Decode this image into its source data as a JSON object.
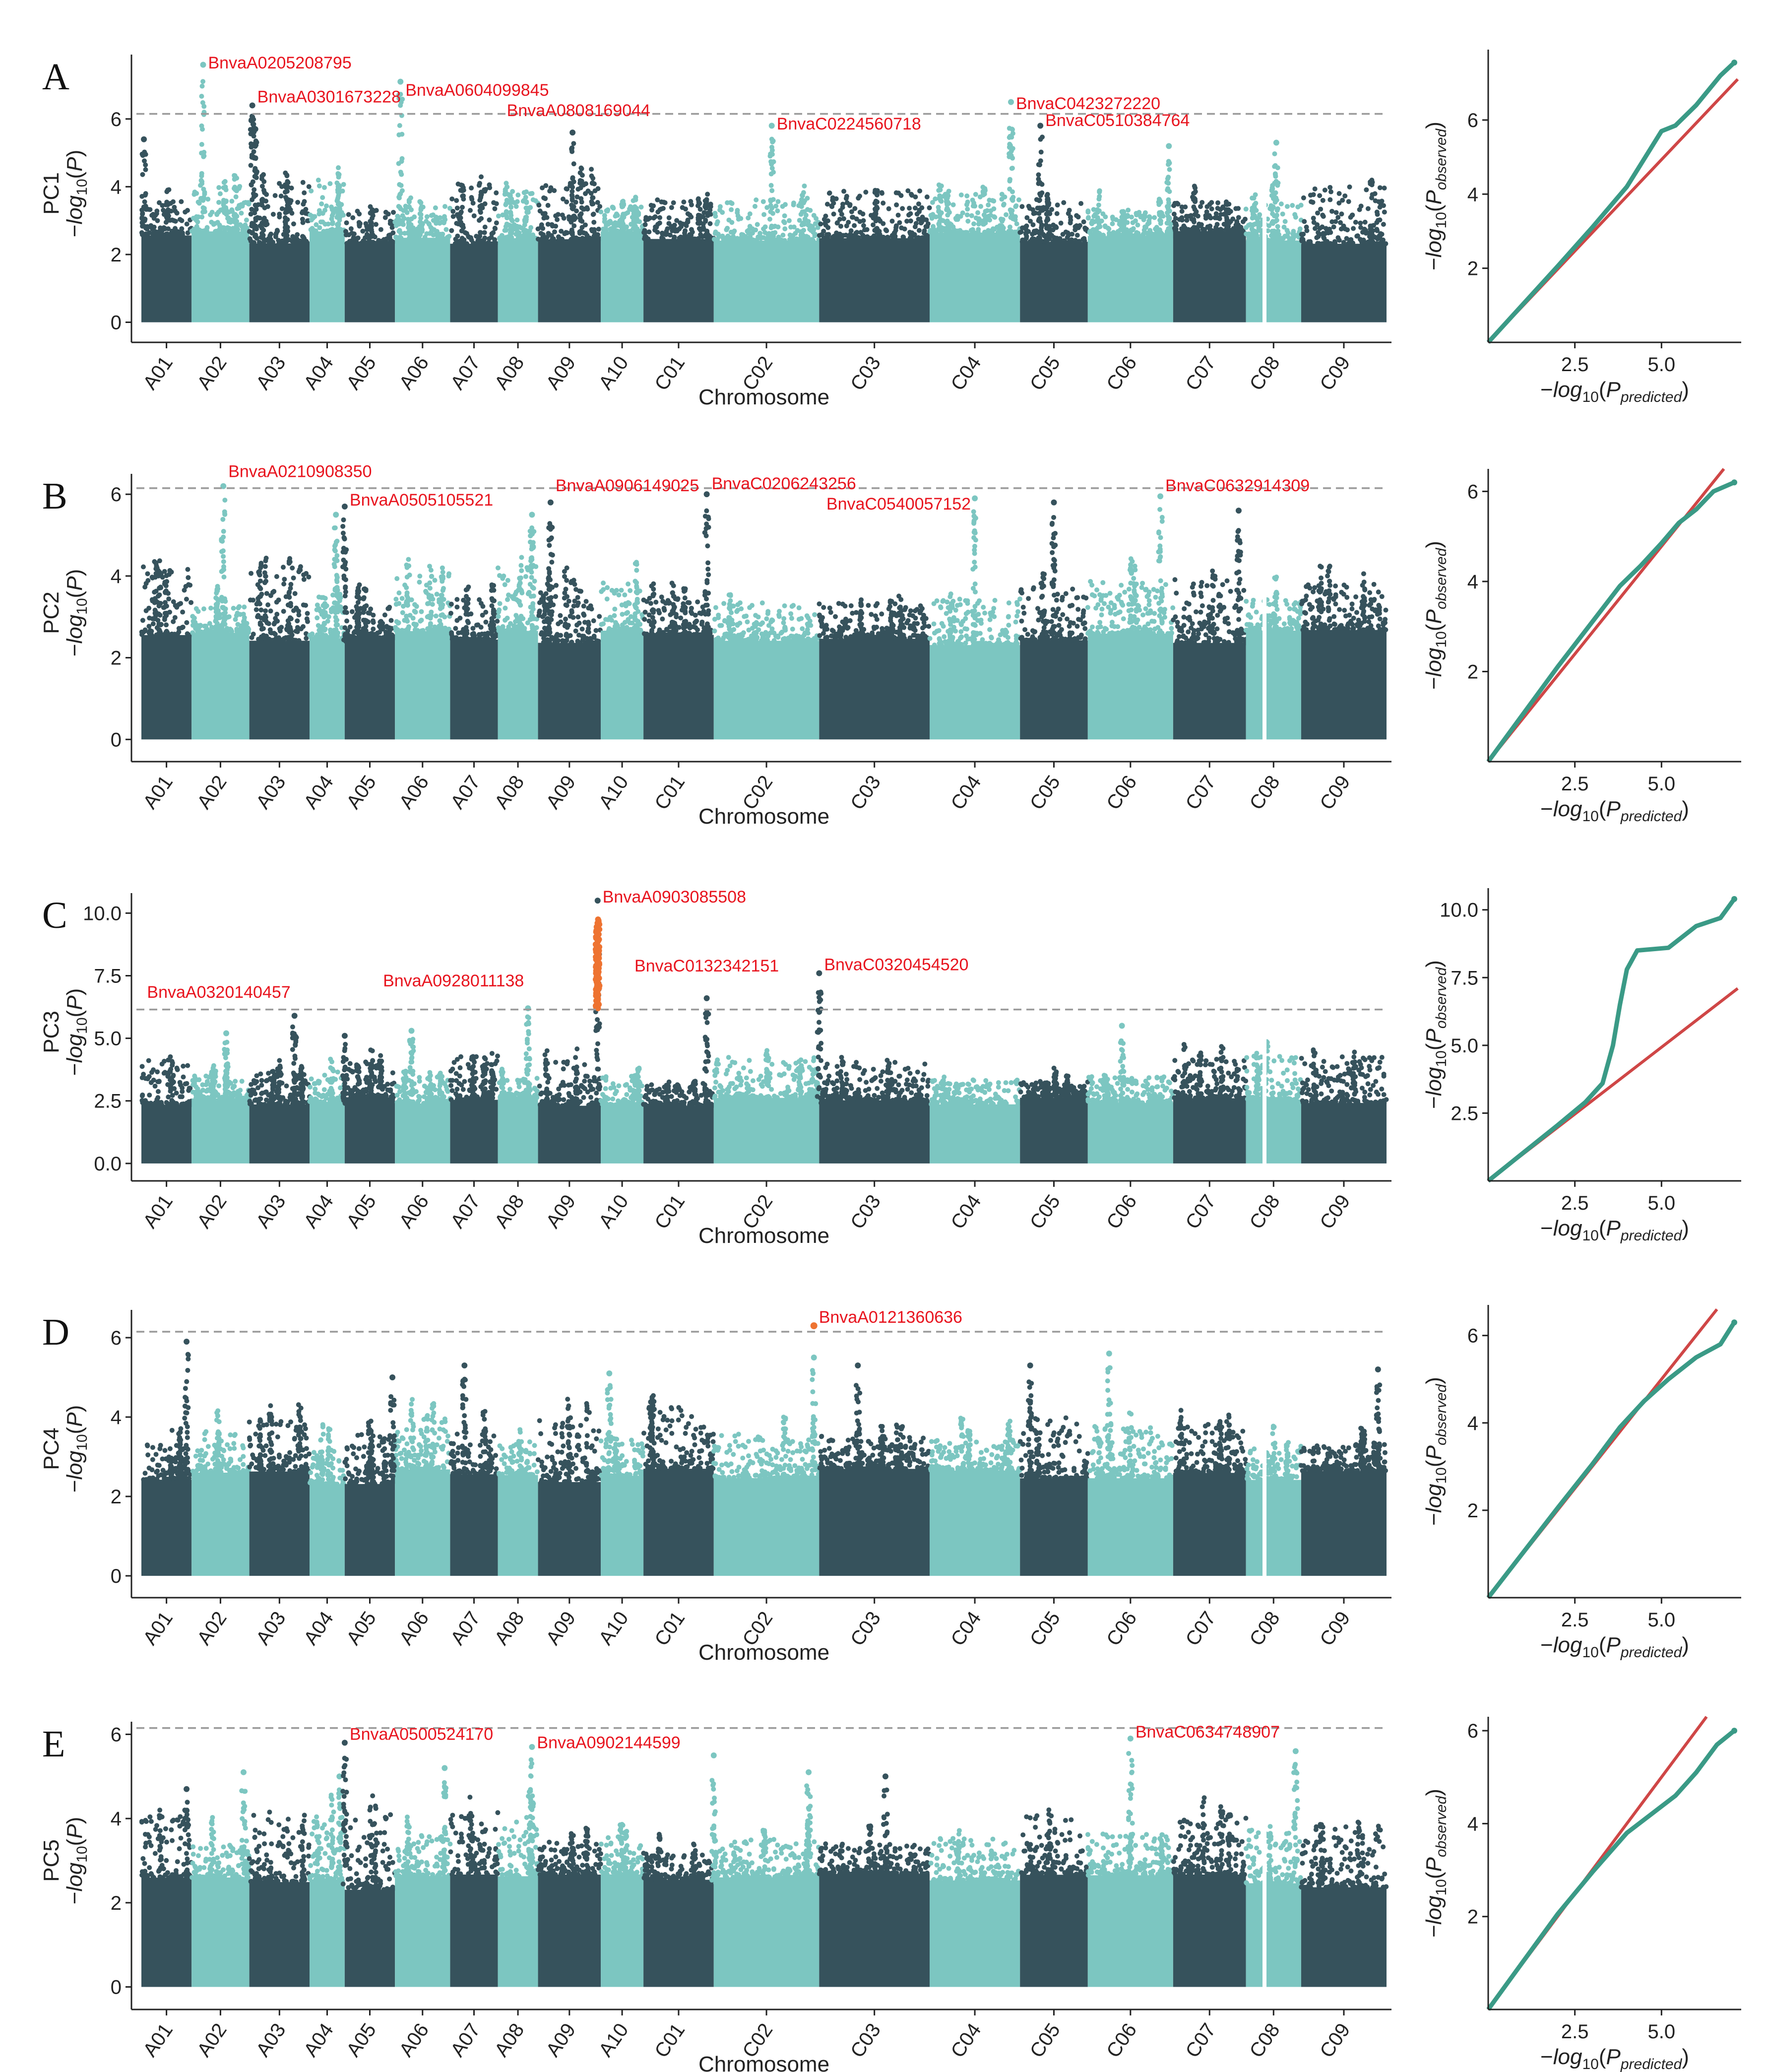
{
  "figure": {
    "x_axis_label": "Chromosome",
    "qq_x_label": "-log10(P_predicted)",
    "qq_y_label": "-log10(P_observed)",
    "colors": {
      "dark": "#36525c",
      "light": "#7cc6c1",
      "highlight": "#ee7331",
      "label": "#e8141e",
      "qq_line": "#cf4646",
      "qq_points": "#3a9a86",
      "threshold": "#9a9a9a"
    }
  },
  "chart_data": [
    {
      "type": "scatter",
      "panel": "A",
      "ylabel_top": "PC1",
      "ylabel": "-log10(P)",
      "xlabel": "Chromosome",
      "chromosomes": [
        "A01",
        "A02",
        "A03",
        "A04",
        "A05",
        "A06",
        "A07",
        "A08",
        "A09",
        "A10",
        "C01",
        "C02",
        "C03",
        "C04",
        "C05",
        "C06",
        "C07",
        "C08",
        "C09"
      ],
      "ylim": [
        -0.3,
        7.9
      ],
      "yticks": [
        0,
        2,
        4,
        6
      ],
      "threshold": 6.15,
      "peaks": [
        {
          "chr": "A01",
          "pos": 0.05,
          "value": 5.4
        },
        {
          "chr": "A02",
          "pos": 0.2,
          "value": 7.6
        },
        {
          "chr": "A03",
          "pos": 0.05,
          "value": 6.4
        },
        {
          "chr": "A03",
          "pos": 0.1,
          "value": 5.7
        },
        {
          "chr": "A06",
          "pos": 0.1,
          "value": 7.1
        },
        {
          "chr": "A09",
          "pos": 0.55,
          "value": 5.6
        },
        {
          "chr": "C02",
          "pos": 0.55,
          "value": 5.8
        },
        {
          "chr": "C04",
          "pos": 0.9,
          "value": 6.5
        },
        {
          "chr": "C05",
          "pos": 0.3,
          "value": 5.8
        },
        {
          "chr": "C06",
          "pos": 0.95,
          "value": 5.2
        },
        {
          "chr": "C08",
          "pos": 0.55,
          "value": 5.3
        }
      ],
      "annotations": [
        {
          "text": "BnvaA0205208795",
          "chr": "A02",
          "pos": 0.2,
          "value": 7.6,
          "side": "right",
          "dy": -0.2
        },
        {
          "text": "BnvaA0301673228",
          "chr": "A03",
          "pos": 0.05,
          "value": 6.4,
          "side": "right",
          "dy": 0
        },
        {
          "text": "BnvaA0604099845",
          "chr": "A06",
          "pos": 0.1,
          "value": 7.1,
          "side": "right",
          "dy": -0.5
        },
        {
          "text": "BnvaA0808169044",
          "chr": "A08",
          "pos": 0.1,
          "value": 6.2,
          "side": "right",
          "dy": -0.2
        },
        {
          "text": "BnvaC0224560718",
          "chr": "C02",
          "pos": 0.55,
          "value": 5.8,
          "side": "right",
          "dy": -0.2
        },
        {
          "text": "BnvaC0423272220",
          "chr": "C04",
          "pos": 0.9,
          "value": 6.5,
          "side": "right",
          "dy": -0.3
        },
        {
          "text": "BnvaC0510384764",
          "chr": "C05",
          "pos": 0.3,
          "value": 5.8,
          "side": "right",
          "dy": -0.1
        }
      ],
      "qq": {
        "xlim": [
          0,
          7.3
        ],
        "ylim": [
          0,
          7.9
        ],
        "xticks": [
          2.5,
          5.0
        ],
        "yticks": [
          2,
          4,
          6
        ],
        "line_end": [
          7.2,
          7.1
        ],
        "curve": [
          [
            0,
            0
          ],
          [
            2,
            2.05
          ],
          [
            3,
            3.1
          ],
          [
            4,
            4.2
          ],
          [
            4.6,
            5.1
          ],
          [
            5,
            5.7
          ],
          [
            5.4,
            5.85
          ],
          [
            6,
            6.4
          ],
          [
            6.7,
            7.2
          ],
          [
            7.1,
            7.55
          ]
        ]
      }
    },
    {
      "type": "scatter",
      "panel": "B",
      "ylabel_top": "PC2",
      "ylabel": "-log10(P)",
      "xlabel": "Chromosome",
      "chromosomes": [
        "A01",
        "A02",
        "A03",
        "A04",
        "A05",
        "A06",
        "A07",
        "A08",
        "A09",
        "A10",
        "C01",
        "C02",
        "C03",
        "C04",
        "C05",
        "C06",
        "C07",
        "C08",
        "C09"
      ],
      "ylim": [
        -0.3,
        6.5
      ],
      "yticks": [
        0,
        2,
        4,
        6
      ],
      "threshold": 6.15,
      "peaks": [
        {
          "chr": "A02",
          "pos": 0.55,
          "value": 6.2
        },
        {
          "chr": "A04",
          "pos": 0.75,
          "value": 5.5
        },
        {
          "chr": "A05",
          "pos": 0.0,
          "value": 5.7
        },
        {
          "chr": "A08",
          "pos": 0.85,
          "value": 5.5
        },
        {
          "chr": "A09",
          "pos": 0.2,
          "value": 5.8
        },
        {
          "chr": "C01",
          "pos": 0.9,
          "value": 6.0
        },
        {
          "chr": "C04",
          "pos": 0.5,
          "value": 5.9
        },
        {
          "chr": "C05",
          "pos": 0.5,
          "value": 5.8
        },
        {
          "chr": "C06",
          "pos": 0.85,
          "value": 5.95
        },
        {
          "chr": "C07",
          "pos": 0.9,
          "value": 5.6
        }
      ],
      "annotations": [
        {
          "text": "BnvaA0210908350",
          "chr": "A02",
          "pos": 0.55,
          "value": 6.2,
          "side": "right",
          "dy": 0.15
        },
        {
          "text": "BnvaA0505105521",
          "chr": "A05",
          "pos": 0.0,
          "value": 5.7,
          "side": "right",
          "dy": -0.05
        },
        {
          "text": "BnvaA0906149025",
          "chr": "A09",
          "pos": 0.2,
          "value": 5.8,
          "side": "right",
          "dy": 0.2
        },
        {
          "text": "BnvaC0206243256",
          "chr": "C01",
          "pos": 0.9,
          "value": 6.0,
          "side": "right",
          "dy": 0.05
        },
        {
          "text": "BnvaC0540057152",
          "chr": "C04",
          "pos": 0.5,
          "value": 5.9,
          "side": "left",
          "dy": -0.35
        },
        {
          "text": "BnvaC0632914309",
          "chr": "C06",
          "pos": 0.85,
          "value": 5.95,
          "side": "right",
          "dy": 0.05
        }
      ],
      "qq": {
        "xlim": [
          0,
          7.3
        ],
        "ylim": [
          0,
          6.5
        ],
        "xticks": [
          2.5,
          5.0
        ],
        "yticks": [
          2,
          4,
          6
        ],
        "line_end": [
          6.8,
          6.5
        ],
        "curve": [
          [
            0,
            0
          ],
          [
            2,
            2.1
          ],
          [
            3,
            3.1
          ],
          [
            3.8,
            3.9
          ],
          [
            4.4,
            4.35
          ],
          [
            5,
            4.85
          ],
          [
            5.5,
            5.3
          ],
          [
            6,
            5.6
          ],
          [
            6.5,
            6.0
          ],
          [
            7.1,
            6.2
          ]
        ]
      }
    },
    {
      "type": "scatter",
      "panel": "C",
      "ylabel_top": "PC3",
      "ylabel": "-log10(P)",
      "xlabel": "Chromosome",
      "chromosomes": [
        "A01",
        "A02",
        "A03",
        "A04",
        "A05",
        "A06",
        "A07",
        "A08",
        "A09",
        "A10",
        "C01",
        "C02",
        "C03",
        "C04",
        "C05",
        "C06",
        "C07",
        "C08",
        "C09"
      ],
      "ylim": [
        -0.3,
        10.8
      ],
      "yticks": [
        0.0,
        2.5,
        5.0,
        7.5,
        10.0
      ],
      "threshold": 6.15,
      "highlight": {
        "chr": "A09",
        "pos": 0.95,
        "from": 6.2,
        "to": 9.8
      },
      "peaks": [
        {
          "chr": "A02",
          "pos": 0.6,
          "value": 5.2
        },
        {
          "chr": "A03",
          "pos": 0.75,
          "value": 5.9
        },
        {
          "chr": "A05",
          "pos": 0.0,
          "value": 5.1
        },
        {
          "chr": "A06",
          "pos": 0.3,
          "value": 5.3
        },
        {
          "chr": "A08",
          "pos": 0.75,
          "value": 6.2
        },
        {
          "chr": "A09",
          "pos": 0.95,
          "value": 10.5
        },
        {
          "chr": "C01",
          "pos": 0.9,
          "value": 6.6
        },
        {
          "chr": "C03",
          "pos": 0.0,
          "value": 7.6
        },
        {
          "chr": "C06",
          "pos": 0.4,
          "value": 5.5
        }
      ],
      "annotations": [
        {
          "text": "BnvaA0903085508",
          "chr": "A09",
          "pos": 0.95,
          "value": 10.5,
          "side": "right",
          "dy": -0.2
        },
        {
          "text": "BnvaA0320140457",
          "chr": "A03",
          "pos": 0.75,
          "value": 5.9,
          "side": "left",
          "dy": 0.6
        },
        {
          "text": "BnvaA0928011138",
          "chr": "A08",
          "pos": 0.75,
          "value": 6.2,
          "side": "left",
          "dy": 0.75
        },
        {
          "text": "BnvaC0132342151",
          "chr": "C01",
          "pos": 0.9,
          "value": 6.6,
          "side": "center",
          "dy": 0.95
        },
        {
          "text": "BnvaC0320454520",
          "chr": "C03",
          "pos": 0.0,
          "value": 7.6,
          "side": "right",
          "dy": 0
        }
      ],
      "qq": {
        "xlim": [
          0,
          7.3
        ],
        "ylim": [
          0,
          10.8
        ],
        "xticks": [
          2.5,
          5.0
        ],
        "yticks": [
          2.5,
          5.0,
          7.5,
          10.0
        ],
        "line_end": [
          7.2,
          7.1
        ],
        "curve": [
          [
            0,
            0
          ],
          [
            2,
            2.05
          ],
          [
            2.8,
            2.9
          ],
          [
            3.3,
            3.6
          ],
          [
            3.6,
            5.0
          ],
          [
            3.8,
            6.5
          ],
          [
            4.0,
            7.8
          ],
          [
            4.3,
            8.5
          ],
          [
            5.2,
            8.6
          ],
          [
            6,
            9.4
          ],
          [
            6.7,
            9.7
          ],
          [
            7.1,
            10.4
          ]
        ]
      }
    },
    {
      "type": "scatter",
      "panel": "D",
      "ylabel_top": "PC4",
      "ylabel": "-log10(P)",
      "xlabel": "Chromosome",
      "chromosomes": [
        "A01",
        "A02",
        "A03",
        "A04",
        "A05",
        "A06",
        "A07",
        "A08",
        "A09",
        "A10",
        "C01",
        "C02",
        "C03",
        "C04",
        "C05",
        "C06",
        "C07",
        "C08",
        "C09"
      ],
      "ylim": [
        -0.3,
        6.7
      ],
      "yticks": [
        0,
        2,
        4,
        6
      ],
      "threshold": 6.15,
      "highlight_point": {
        "chr": "C02",
        "pos": 0.95,
        "value": 6.3
      },
      "peaks": [
        {
          "chr": "A01",
          "pos": 0.9,
          "value": 5.9
        },
        {
          "chr": "A05",
          "pos": 0.95,
          "value": 5.0
        },
        {
          "chr": "A07",
          "pos": 0.3,
          "value": 5.3
        },
        {
          "chr": "A10",
          "pos": 0.2,
          "value": 5.1
        },
        {
          "chr": "C02",
          "pos": 0.95,
          "value": 5.5
        },
        {
          "chr": "C03",
          "pos": 0.35,
          "value": 5.3
        },
        {
          "chr": "C05",
          "pos": 0.15,
          "value": 5.3
        },
        {
          "chr": "C06",
          "pos": 0.25,
          "value": 5.6
        },
        {
          "chr": "C09",
          "pos": 0.9,
          "value": 5.2
        }
      ],
      "annotations": [
        {
          "text": "BnvaA0121360636",
          "chr": "C02",
          "pos": 0.95,
          "value": 6.3,
          "side": "right",
          "dy": 0
        }
      ],
      "qq": {
        "xlim": [
          0,
          7.3
        ],
        "ylim": [
          0,
          6.7
        ],
        "xticks": [
          2.5,
          5.0
        ],
        "yticks": [
          2,
          4,
          6
        ],
        "line_end": [
          6.6,
          6.6
        ],
        "curve": [
          [
            0,
            0
          ],
          [
            2,
            2.05
          ],
          [
            3,
            3.05
          ],
          [
            3.8,
            3.9
          ],
          [
            4.5,
            4.5
          ],
          [
            5.2,
            5.0
          ],
          [
            6,
            5.5
          ],
          [
            6.7,
            5.8
          ],
          [
            7.1,
            6.3
          ]
        ]
      }
    },
    {
      "type": "scatter",
      "panel": "E",
      "ylabel_top": "PC5",
      "ylabel": "-log10(P)",
      "xlabel": "Chromosome",
      "chromosomes": [
        "A01",
        "A02",
        "A03",
        "A04",
        "A05",
        "A06",
        "A07",
        "A08",
        "A09",
        "A10",
        "C01",
        "C02",
        "C03",
        "C04",
        "C05",
        "C06",
        "C07",
        "C08",
        "C09"
      ],
      "ylim": [
        -0.3,
        6.3
      ],
      "yticks": [
        0,
        2,
        4,
        6
      ],
      "threshold": 6.15,
      "peaks": [
        {
          "chr": "A01",
          "pos": 0.9,
          "value": 4.7
        },
        {
          "chr": "A02",
          "pos": 0.9,
          "value": 5.1
        },
        {
          "chr": "A04",
          "pos": 0.85,
          "value": 5.0
        },
        {
          "chr": "A05",
          "pos": 0.0,
          "value": 5.8
        },
        {
          "chr": "A06",
          "pos": 0.9,
          "value": 5.2
        },
        {
          "chr": "A08",
          "pos": 0.85,
          "value": 5.7
        },
        {
          "chr": "C02",
          "pos": 0.0,
          "value": 5.5
        },
        {
          "chr": "C02",
          "pos": 0.9,
          "value": 5.1
        },
        {
          "chr": "C03",
          "pos": 0.6,
          "value": 5.0
        },
        {
          "chr": "C06",
          "pos": 0.5,
          "value": 5.9
        },
        {
          "chr": "C08",
          "pos": 0.9,
          "value": 5.6
        }
      ],
      "annotations": [
        {
          "text": "BnvaA0500524170",
          "chr": "A05",
          "pos": 0.0,
          "value": 5.8,
          "side": "right",
          "dy": 0
        },
        {
          "text": "BnvaA0902144599",
          "chr": "A08",
          "pos": 0.85,
          "value": 5.7,
          "side": "right",
          "dy": -0.1
        },
        {
          "text": "BnvaC0634748907",
          "chr": "C06",
          "pos": 0.5,
          "value": 5.9,
          "side": "right",
          "dy": -0.05
        }
      ],
      "qq": {
        "xlim": [
          0,
          7.3
        ],
        "ylim": [
          0,
          6.3
        ],
        "xticks": [
          2.5,
          5.0
        ],
        "yticks": [
          2,
          4,
          6
        ],
        "line_end": [
          6.3,
          6.3
        ],
        "curve": [
          [
            0,
            0
          ],
          [
            2,
            2.05
          ],
          [
            3,
            2.95
          ],
          [
            4,
            3.8
          ],
          [
            4.7,
            4.2
          ],
          [
            5.4,
            4.6
          ],
          [
            6,
            5.1
          ],
          [
            6.6,
            5.7
          ],
          [
            7.1,
            6.0
          ]
        ]
      }
    }
  ]
}
